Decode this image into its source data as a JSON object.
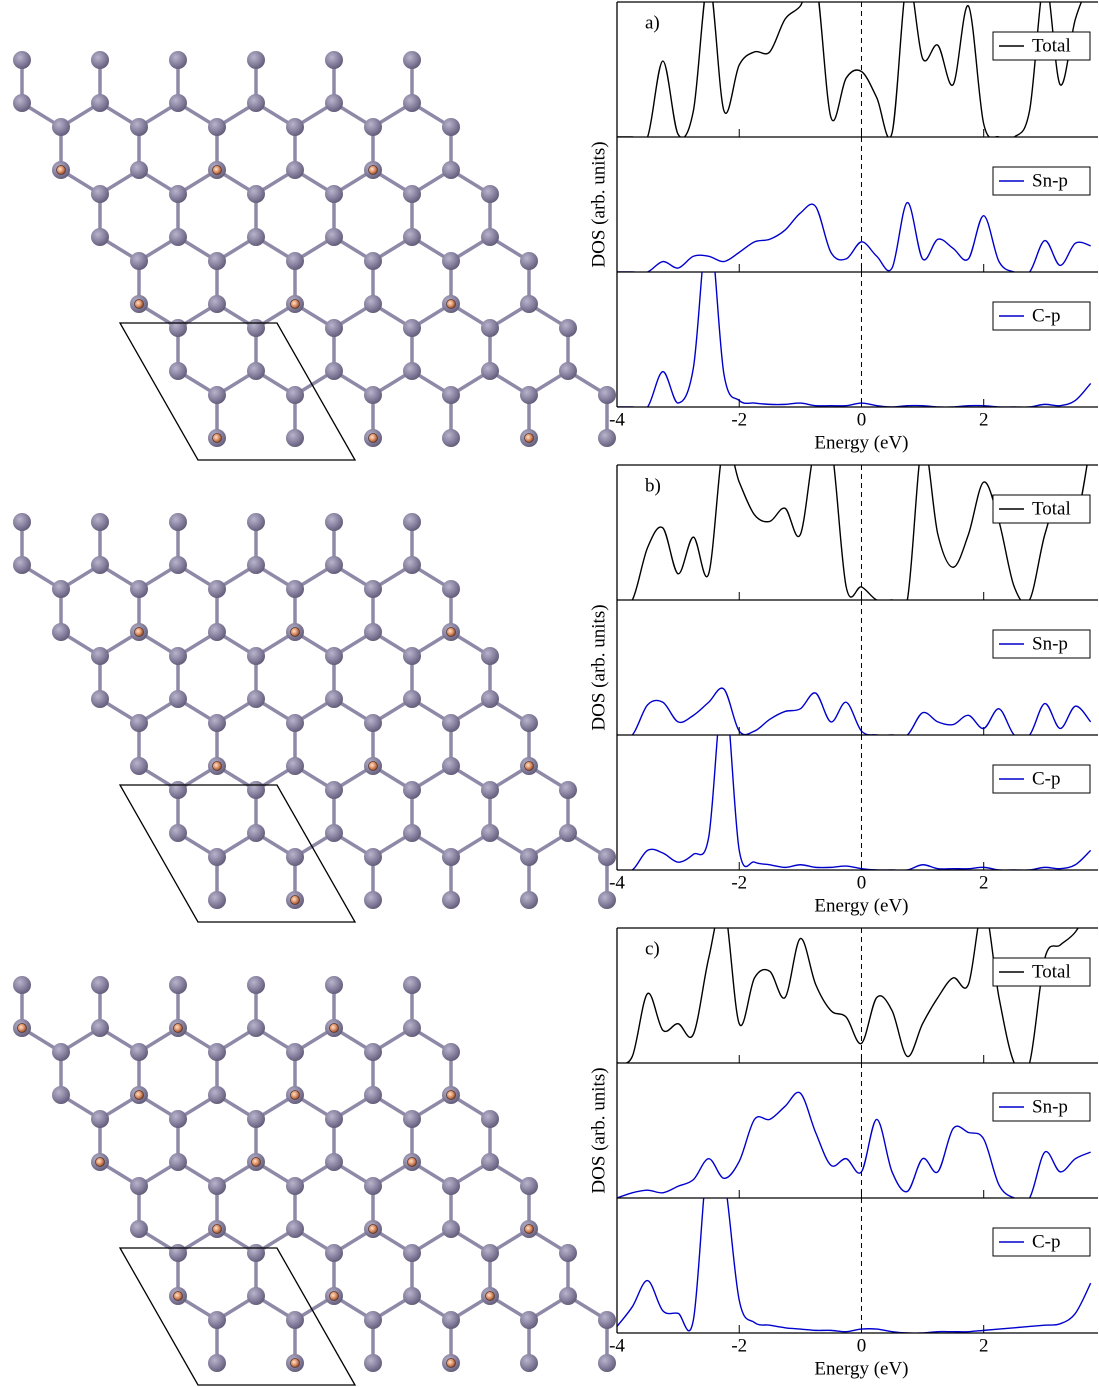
{
  "chart_data": [
    {
      "type": "line",
      "label": "a)",
      "xlabel": "Energy (eV)",
      "ylabel": "DOS (arb. units)",
      "xlim": [
        -4,
        3.87
      ],
      "xticks": [
        -4,
        -2,
        0,
        2
      ],
      "ylim": [
        0,
        10
      ],
      "fermi_level": 0,
      "x": [
        -4,
        -3.75,
        -3.5,
        -3.25,
        -3,
        -2.75,
        -2.5,
        -2.25,
        -2,
        -1.75,
        -1.5,
        -1.25,
        -1,
        -0.75,
        -0.5,
        -0.25,
        0,
        0.25,
        0.5,
        0.75,
        1,
        1.25,
        1.5,
        1.75,
        2,
        2.25,
        2.5,
        2.75,
        3,
        3.25,
        3.5,
        3.75
      ],
      "series": [
        {
          "name": "Total",
          "color": "#000000",
          "values": [
            0,
            0,
            0,
            5.8,
            0.2,
            2,
            12,
            2,
            5.5,
            6.5,
            6.5,
            9,
            10,
            12,
            1.5,
            4.5,
            5,
            3,
            0.3,
            12,
            6,
            7,
            4,
            10,
            1,
            0,
            0,
            2,
            12,
            4,
            9,
            12
          ]
        },
        {
          "name": "Sn-p",
          "color": "#0000cc",
          "values": [
            0,
            0,
            0,
            0.8,
            0.3,
            1.2,
            1.2,
            0.8,
            1.5,
            2.3,
            2.5,
            3.2,
            4.5,
            5,
            1.5,
            1,
            2.3,
            1.2,
            0.3,
            5.3,
            1,
            2.5,
            1.8,
            1,
            4.3,
            0.8,
            0,
            0,
            2.4,
            0.5,
            2.2,
            2
          ]
        },
        {
          "name": "C-p",
          "color": "#0000cc",
          "values": [
            0,
            0,
            0,
            2.7,
            0.3,
            3,
            14,
            2.5,
            0.5,
            0.3,
            0.2,
            0.2,
            0.3,
            0.1,
            0.1,
            0.1,
            0.3,
            0.1,
            0,
            0.1,
            0.1,
            0,
            0,
            0.1,
            0.1,
            0,
            0,
            0,
            0.2,
            0.1,
            0.5,
            1.8
          ]
        }
      ]
    },
    {
      "type": "line",
      "label": "b)",
      "xlabel": "Energy (eV)",
      "ylabel": "DOS (arb. units)",
      "xlim": [
        -4,
        3.87
      ],
      "xticks": [
        -4,
        -2,
        0,
        2
      ],
      "ylim": [
        0,
        10
      ],
      "fermi_level": 0,
      "x": [
        -4,
        -3.75,
        -3.5,
        -3.25,
        -3,
        -2.75,
        -2.5,
        -2.25,
        -2,
        -1.75,
        -1.5,
        -1.25,
        -1,
        -0.75,
        -0.5,
        -0.25,
        0,
        0.25,
        0.5,
        0.75,
        1,
        1.25,
        1.5,
        1.75,
        2,
        2.25,
        2.5,
        2.75,
        3,
        3.25,
        3.5,
        3.75
      ],
      "series": [
        {
          "name": "Total",
          "color": "#000000",
          "values": [
            0,
            0,
            4,
            5.5,
            2,
            4.8,
            2,
            12,
            9,
            6.5,
            6,
            7,
            5,
            12,
            12,
            1,
            1,
            0,
            0,
            0,
            12,
            5,
            2.5,
            5,
            9,
            6,
            1,
            0,
            5,
            8,
            6,
            12
          ]
        },
        {
          "name": "Sn-p",
          "color": "#0000cc",
          "values": [
            0,
            0,
            2.3,
            2.5,
            1,
            1.5,
            2.5,
            3.5,
            0.3,
            0.3,
            1.2,
            1.8,
            2,
            3.2,
            1,
            2.5,
            0.3,
            0,
            0,
            0,
            1.7,
            1,
            0.8,
            1.5,
            0.5,
            2,
            0,
            0,
            2.4,
            0.5,
            2.2,
            1
          ]
        },
        {
          "name": "C-p",
          "color": "#0000cc",
          "values": [
            0,
            0,
            1.5,
            1.3,
            0.6,
            1.2,
            2.5,
            14,
            1.5,
            0.6,
            0.4,
            0.2,
            0.4,
            0.2,
            0.2,
            0.3,
            0.1,
            0,
            0,
            0,
            0.4,
            0.1,
            0.1,
            0.1,
            0.2,
            0,
            0,
            0,
            0.2,
            0.1,
            0.4,
            1.5
          ]
        }
      ]
    },
    {
      "type": "line",
      "label": "c)",
      "xlabel": "Energy (eV)",
      "ylabel": "DOS (arb. units)",
      "xlim": [
        -4,
        3.87
      ],
      "xticks": [
        -4,
        -2,
        0,
        2
      ],
      "ylim": [
        0,
        10
      ],
      "fermi_level": 0,
      "x": [
        -4,
        -3.75,
        -3.5,
        -3.25,
        -3,
        -2.75,
        -2.5,
        -2.25,
        -2,
        -1.75,
        -1.5,
        -1.25,
        -1,
        -0.75,
        -0.5,
        -0.25,
        0,
        0.25,
        0.5,
        0.75,
        1,
        1.25,
        1.5,
        1.75,
        2,
        2.25,
        2.5,
        2.75,
        3,
        3.25,
        3.5,
        3.75
      ],
      "series": [
        {
          "name": "Total",
          "color": "#000000",
          "values": [
            0,
            0.5,
            5.3,
            2.5,
            3,
            2.2,
            8,
            12,
            3,
            6.5,
            7,
            5,
            9.5,
            6,
            4,
            3.5,
            1.5,
            5,
            4,
            0.5,
            3,
            5,
            6.5,
            6,
            12,
            5,
            0,
            0,
            8,
            9,
            10,
            12
          ]
        },
        {
          "name": "Sn-p",
          "color": "#0000cc",
          "values": [
            0,
            0.4,
            0.6,
            0.4,
            0.9,
            1.4,
            3,
            1.5,
            2.8,
            6,
            6,
            7,
            8,
            5,
            2.5,
            3,
            2,
            6,
            2,
            0.5,
            3,
            2,
            5.3,
            5,
            4.5,
            1,
            0,
            0,
            3.5,
            2,
            3,
            3.5
          ]
        },
        {
          "name": "C-p",
          "color": "#0000cc",
          "values": [
            0.5,
            2,
            4,
            1.7,
            1.5,
            1,
            14,
            12,
            2.5,
            0.8,
            0.6,
            0.4,
            0.3,
            0.2,
            0.2,
            0.1,
            0.3,
            0.3,
            0.1,
            0,
            0,
            0.1,
            0.1,
            0.1,
            0.2,
            0.3,
            0.4,
            0.5,
            0.6,
            0.7,
            1.5,
            3.8
          ]
        }
      ]
    }
  ]
}
